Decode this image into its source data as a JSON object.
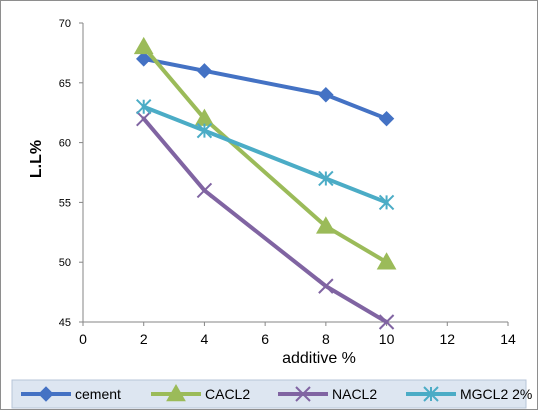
{
  "chart_data": {
    "type": "line",
    "title": "",
    "xlabel": "additive %",
    "ylabel": "L.L%",
    "xlim": [
      0,
      14
    ],
    "ylim": [
      45,
      70
    ],
    "x_ticks": [
      0,
      2,
      4,
      6,
      8,
      10,
      12,
      14
    ],
    "y_ticks": [
      45,
      50,
      55,
      60,
      65,
      70
    ],
    "grid": false,
    "legend_position": "bottom",
    "x": [
      2,
      4,
      8,
      10
    ],
    "series": [
      {
        "name": "cement",
        "values": [
          67,
          66,
          64,
          62
        ],
        "color": "#4472c4",
        "marker": "diamond"
      },
      {
        "name": "CACL2",
        "values": [
          68,
          62,
          53,
          50
        ],
        "color": "#9bbb59",
        "marker": "triangle"
      },
      {
        "name": "NACL2",
        "values": [
          62,
          56,
          48,
          45
        ],
        "color": "#8064a2",
        "marker": "x"
      },
      {
        "name": "MGCL2 2%",
        "values": [
          63,
          61,
          57,
          55
        ],
        "color": "#4bacc6",
        "marker": "asterisk"
      }
    ]
  }
}
